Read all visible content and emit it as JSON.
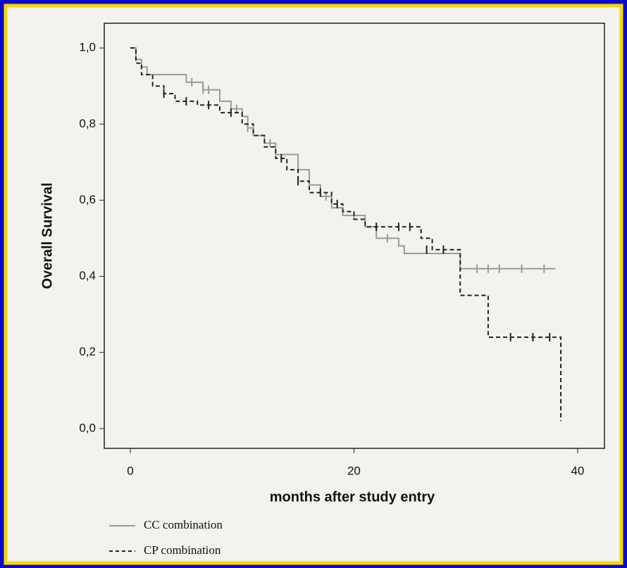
{
  "chart_data": {
    "type": "line",
    "step": true,
    "xlabel": "months after study entry",
    "ylabel": "Overall Survival",
    "xlim": [
      -2.33,
      42.4
    ],
    "ylim": [
      -0.052,
      1.065
    ],
    "xticks": [
      0,
      20,
      40
    ],
    "yticks": [
      {
        "value": 0,
        "label": "0,0"
      },
      {
        "value": 0.2,
        "label": "0,2"
      },
      {
        "value": 0.4,
        "label": "0,4"
      },
      {
        "value": 0.6,
        "label": "0,6"
      },
      {
        "value": 0.8,
        "label": "0,8"
      },
      {
        "value": 1,
        "label": "1,0"
      }
    ],
    "series": [
      {
        "name": "CC combination",
        "color": "#9a9a9a",
        "dash": "none",
        "x": [
          0,
          0.5,
          1,
          1.5,
          5,
          6.5,
          8,
          9,
          10,
          10.5,
          11,
          12,
          13,
          15,
          16,
          17,
          18,
          19,
          21,
          22,
          24,
          24.5,
          29.5,
          38
        ],
        "values": [
          1.0,
          0.97,
          0.95,
          0.93,
          0.91,
          0.89,
          0.86,
          0.84,
          0.82,
          0.79,
          0.77,
          0.75,
          0.72,
          0.68,
          0.64,
          0.61,
          0.58,
          0.56,
          0.53,
          0.5,
          0.48,
          0.46,
          0.42,
          0.42
        ],
        "censored_x": [
          5.5,
          6.5,
          7,
          9.5,
          10.5,
          12.5,
          17.5,
          20,
          23,
          31,
          32,
          33,
          35,
          37
        ],
        "censored_values": [
          0.91,
          0.89,
          0.89,
          0.84,
          0.79,
          0.75,
          0.61,
          0.56,
          0.5,
          0.42,
          0.42,
          0.42,
          0.42,
          0.42
        ]
      },
      {
        "name": "CP combination",
        "color": "#222222",
        "dash": "6 4",
        "x": [
          0,
          0.5,
          1,
          2,
          3,
          4,
          6,
          8,
          10,
          11,
          12,
          13,
          14,
          15,
          16,
          18,
          19,
          20,
          21,
          26,
          27,
          29.5,
          32,
          38.5
        ],
        "values": [
          1.0,
          0.96,
          0.93,
          0.9,
          0.88,
          0.86,
          0.85,
          0.83,
          0.8,
          0.77,
          0.74,
          0.71,
          0.68,
          0.65,
          0.62,
          0.59,
          0.57,
          0.55,
          0.53,
          0.5,
          0.47,
          0.35,
          0.24,
          0.02
        ],
        "censored_x": [
          3,
          5,
          7,
          9,
          13.5,
          15,
          17,
          18.5,
          22,
          24,
          25,
          26.5,
          28,
          34,
          36,
          37.5
        ],
        "censored_values": [
          0.88,
          0.86,
          0.85,
          0.83,
          0.71,
          0.65,
          0.62,
          0.59,
          0.53,
          0.53,
          0.53,
          0.47,
          0.47,
          0.24,
          0.24,
          0.24
        ]
      }
    ]
  }
}
